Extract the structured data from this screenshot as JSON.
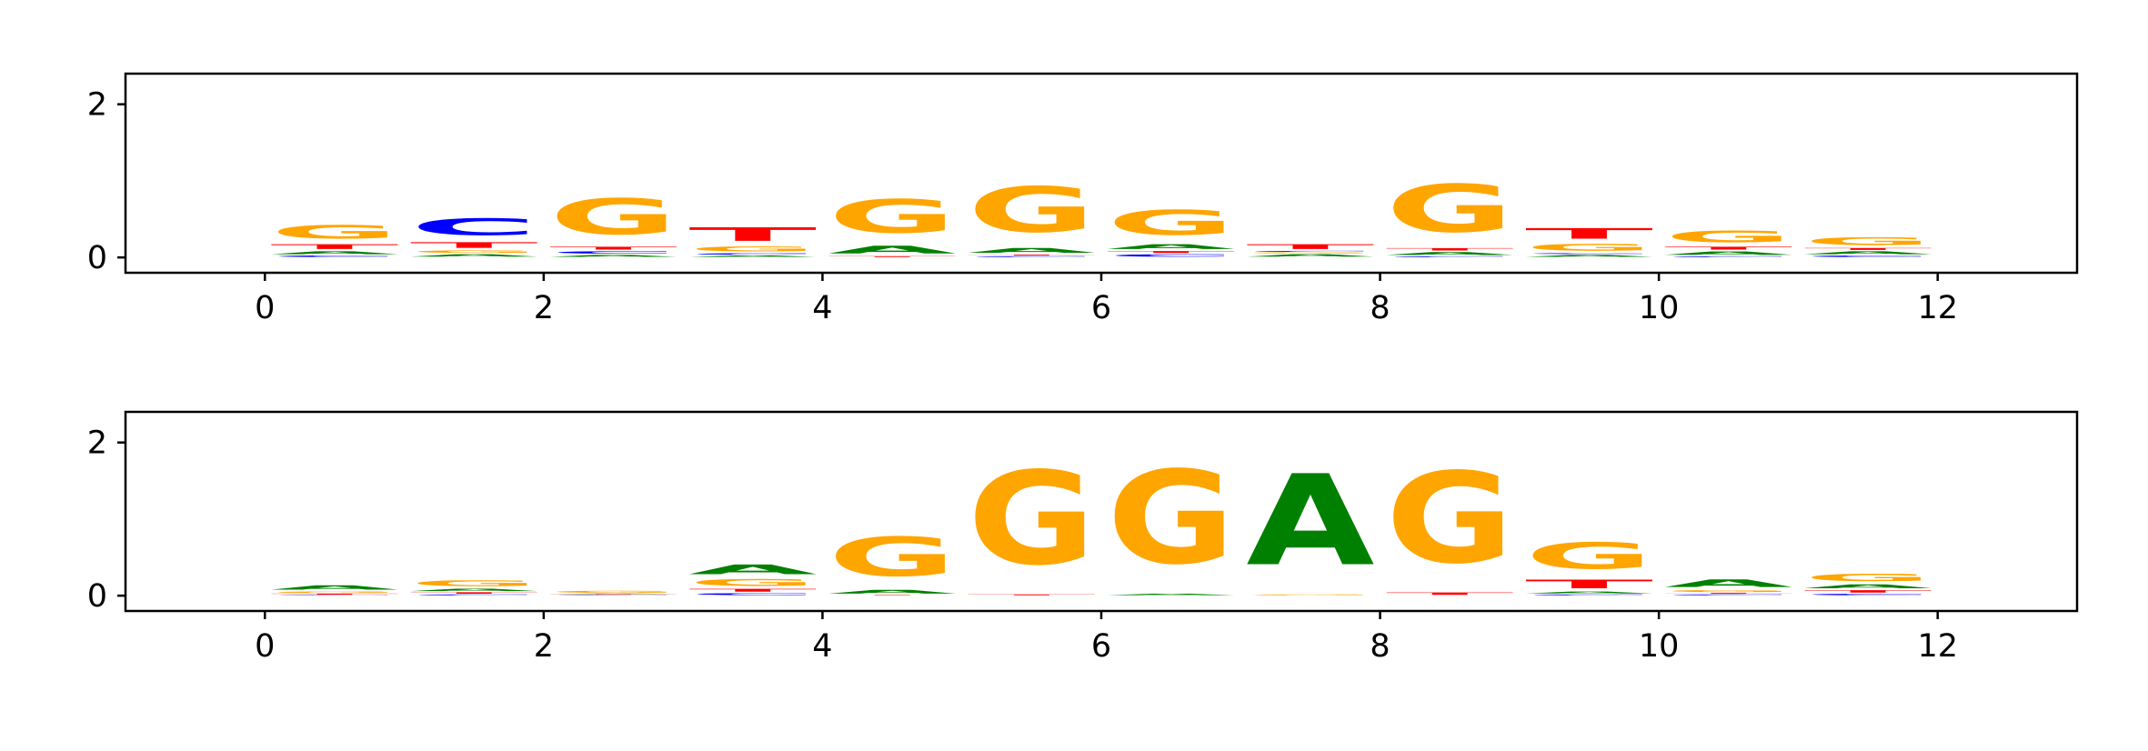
{
  "chart_data": [
    {
      "type": "sequence-logo",
      "xlim": [
        -1,
        13
      ],
      "ylim": [
        -0.2,
        2.4
      ],
      "x_ticks": [
        0,
        2,
        4,
        6,
        8,
        10,
        12
      ],
      "y_ticks": [
        0,
        2
      ],
      "positions": [
        {
          "x": 0,
          "letters": [
            {
              "base": "C",
              "h": 0.03
            },
            {
              "base": "A",
              "h": 0.06
            },
            {
              "base": "T",
              "h": 0.1
            },
            {
              "base": "G",
              "h": 0.28
            }
          ]
        },
        {
          "x": 1,
          "letters": [
            {
              "base": "A",
              "h": 0.05
            },
            {
              "base": "G",
              "h": 0.05
            },
            {
              "base": "T",
              "h": 0.12
            },
            {
              "base": "C",
              "h": 0.35
            }
          ]
        },
        {
          "x": 2,
          "letters": [
            {
              "base": "A",
              "h": 0.04
            },
            {
              "base": "C",
              "h": 0.05
            },
            {
              "base": "T",
              "h": 0.06
            },
            {
              "base": "G",
              "h": 0.75
            }
          ]
        },
        {
          "x": 3,
          "letters": [
            {
              "base": "A",
              "h": 0.03
            },
            {
              "base": "C",
              "h": 0.03
            },
            {
              "base": "G",
              "h": 0.1
            },
            {
              "base": "T",
              "h": 0.28
            }
          ]
        },
        {
          "x": 4,
          "letters": [
            {
              "base": "T",
              "h": 0.02
            },
            {
              "base": "A",
              "h": 0.16
            },
            {
              "base": "G",
              "h": 0.7
            }
          ]
        },
        {
          "x": 5,
          "letters": [
            {
              "base": "C",
              "h": 0.02
            },
            {
              "base": "T",
              "h": 0.02
            },
            {
              "base": "A",
              "h": 0.1
            },
            {
              "base": "G",
              "h": 0.95
            }
          ]
        },
        {
          "x": 6,
          "letters": [
            {
              "base": "C",
              "h": 0.05
            },
            {
              "base": "T",
              "h": 0.04
            },
            {
              "base": "A",
              "h": 0.1
            },
            {
              "base": "G",
              "h": 0.52
            }
          ]
        },
        {
          "x": 7,
          "letters": [
            {
              "base": "A",
              "h": 0.05
            },
            {
              "base": "G",
              "h": 0.02
            },
            {
              "base": "C",
              "h": 0.02
            },
            {
              "base": "T",
              "h": 0.1
            }
          ]
        },
        {
          "x": 8,
          "letters": [
            {
              "base": "C",
              "h": 0.02
            },
            {
              "base": "A",
              "h": 0.06
            },
            {
              "base": "T",
              "h": 0.05
            },
            {
              "base": "G",
              "h": 1.0
            }
          ]
        },
        {
          "x": 9,
          "letters": [
            {
              "base": "A",
              "h": 0.04
            },
            {
              "base": "C",
              "h": 0.02
            },
            {
              "base": "G",
              "h": 0.14
            },
            {
              "base": "T",
              "h": 0.22
            }
          ]
        },
        {
          "x": 10,
          "letters": [
            {
              "base": "C",
              "h": 0.02
            },
            {
              "base": "A",
              "h": 0.07
            },
            {
              "base": "T",
              "h": 0.06
            },
            {
              "base": "G",
              "h": 0.24
            }
          ]
        },
        {
          "x": 11,
          "letters": [
            {
              "base": "C",
              "h": 0.03
            },
            {
              "base": "A",
              "h": 0.06
            },
            {
              "base": "T",
              "h": 0.04
            },
            {
              "base": "G",
              "h": 0.16
            }
          ]
        }
      ]
    },
    {
      "type": "sequence-logo",
      "xlim": [
        -1,
        13
      ],
      "ylim": [
        -0.2,
        2.4
      ],
      "x_ticks": [
        0,
        2,
        4,
        6,
        8,
        10,
        12
      ],
      "y_ticks": [
        0,
        2
      ],
      "positions": [
        {
          "x": 0,
          "letters": [
            {
              "base": "C",
              "h": 0.01
            },
            {
              "base": "T",
              "h": 0.02
            },
            {
              "base": "G",
              "h": 0.03
            },
            {
              "base": "A",
              "h": 0.09
            }
          ]
        },
        {
          "x": 1,
          "letters": [
            {
              "base": "C",
              "h": 0.02
            },
            {
              "base": "T",
              "h": 0.03
            },
            {
              "base": "A",
              "h": 0.05
            },
            {
              "base": "G",
              "h": 0.12
            }
          ]
        },
        {
          "x": 2,
          "letters": [
            {
              "base": "C",
              "h": 0.01
            },
            {
              "base": "T",
              "h": 0.01
            },
            {
              "base": "A",
              "h": 0.01
            },
            {
              "base": "G",
              "h": 0.04
            }
          ]
        },
        {
          "x": 3,
          "letters": [
            {
              "base": "C",
              "h": 0.04
            },
            {
              "base": "T",
              "h": 0.06
            },
            {
              "base": "G",
              "h": 0.14
            },
            {
              "base": "A",
              "h": 0.2
            }
          ]
        },
        {
          "x": 4,
          "letters": [
            {
              "base": "T",
              "h": 0.01
            },
            {
              "base": "A",
              "h": 0.08
            },
            {
              "base": "G",
              "h": 0.82
            }
          ]
        },
        {
          "x": 5,
          "letters": [
            {
              "base": "T",
              "h": 0.02
            },
            {
              "base": "G",
              "h": 1.95
            }
          ]
        },
        {
          "x": 6,
          "letters": [
            {
              "base": "A",
              "h": 0.03
            },
            {
              "base": "G",
              "h": 1.95
            }
          ]
        },
        {
          "x": 7,
          "letters": [
            {
              "base": "G",
              "h": 0.02
            },
            {
              "base": "A",
              "h": 1.9
            }
          ]
        },
        {
          "x": 8,
          "letters": [
            {
              "base": "T",
              "h": 0.05
            },
            {
              "base": "G",
              "h": 1.9
            }
          ]
        },
        {
          "x": 9,
          "letters": [
            {
              "base": "C",
              "h": 0.02
            },
            {
              "base": "A",
              "h": 0.04
            },
            {
              "base": "T",
              "h": 0.18
            },
            {
              "base": "G",
              "h": 0.55
            }
          ]
        },
        {
          "x": 10,
          "letters": [
            {
              "base": "C",
              "h": 0.02
            },
            {
              "base": "T",
              "h": 0.02
            },
            {
              "base": "G",
              "h": 0.04
            },
            {
              "base": "A",
              "h": 0.16
            }
          ]
        },
        {
          "x": 11,
          "letters": [
            {
              "base": "C",
              "h": 0.03
            },
            {
              "base": "T",
              "h": 0.05
            },
            {
              "base": "A",
              "h": 0.08
            },
            {
              "base": "G",
              "h": 0.15
            }
          ]
        }
      ]
    }
  ],
  "colors": {
    "A": "#008000",
    "C": "#0000ff",
    "G": "#ffa500",
    "T": "#ff0000",
    "axis": "#000000",
    "background": "#ffffff"
  }
}
